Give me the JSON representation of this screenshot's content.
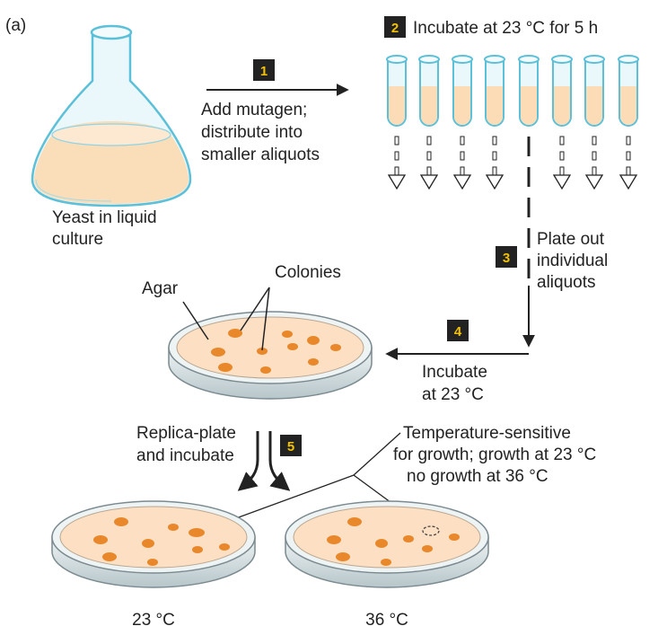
{
  "panel_label": "(a)",
  "flask": {
    "caption_line1": "Yeast in liquid",
    "caption_line2": "culture"
  },
  "step1": {
    "number": "1",
    "line1": "Add mutagen;",
    "line2": "distribute into",
    "line3": "smaller aliquots"
  },
  "step2": {
    "number": "2",
    "text": "Incubate at 23 °C for 5 h"
  },
  "step3": {
    "number": "3",
    "line1": "Plate out",
    "line2": "individual",
    "line3": "aliquots"
  },
  "step4": {
    "number": "4",
    "line1": "Incubate",
    "line2": "at 23 °C"
  },
  "step5": {
    "number": "5",
    "line1": "Replica-plate",
    "line2": "and incubate"
  },
  "dish_labels": {
    "agar": "Agar",
    "colonies": "Colonies"
  },
  "ts_note": {
    "line1": "Temperature-sensitive",
    "line2": "for growth; growth at 23 °C",
    "line3": "no growth at 36 °C"
  },
  "plates": {
    "left_temp": "23 °C",
    "right_temp": "36 °C"
  },
  "colors": {
    "liquid": "#fbdcb6",
    "glass": "#5cc0d8",
    "colony": "#e8882a",
    "agar": "#fde0c4",
    "step_box": "#222222",
    "step_number": "#f2c200"
  }
}
